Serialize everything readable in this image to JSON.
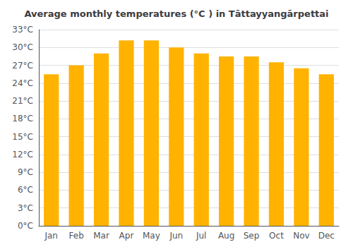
{
  "chart_data": {
    "type": "bar",
    "title": "Average monthly temperatures (°C ) in Tāttayyangārpettai",
    "categories": [
      "Jan",
      "Feb",
      "Mar",
      "Apr",
      "May",
      "Jun",
      "Jul",
      "Aug",
      "Sep",
      "Oct",
      "Nov",
      "Dec"
    ],
    "values": [
      25.5,
      27.0,
      29.0,
      31.2,
      31.2,
      30.0,
      29.0,
      28.5,
      28.5,
      27.5,
      26.5,
      25.5
    ],
    "color": "#FFB300",
    "ylim": [
      0,
      33
    ],
    "yticks": [
      {
        "value": 0,
        "label": "0°C"
      },
      {
        "value": 3,
        "label": "3°C"
      },
      {
        "value": 6,
        "label": "6°C"
      },
      {
        "value": 9,
        "label": "9°C"
      },
      {
        "value": 12,
        "label": "12°C"
      },
      {
        "value": 15,
        "label": "15°C"
      },
      {
        "value": 18,
        "label": "18°C"
      },
      {
        "value": 21,
        "label": "21°C"
      },
      {
        "value": 24,
        "label": "24°C"
      },
      {
        "value": 27,
        "label": "27°C"
      },
      {
        "value": 30,
        "label": "30°C"
      },
      {
        "value": 33,
        "label": "33°C"
      }
    ],
    "grid": true
  }
}
